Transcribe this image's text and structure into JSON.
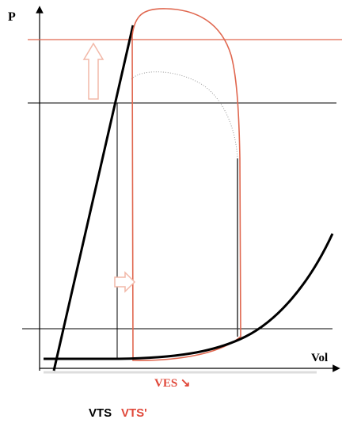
{
  "axes": {
    "y_label": "P",
    "x_label": "Vol"
  },
  "annotations": {
    "ves": "VES ↘",
    "vts": "VTS",
    "vts_prime": "VTS'"
  }
}
